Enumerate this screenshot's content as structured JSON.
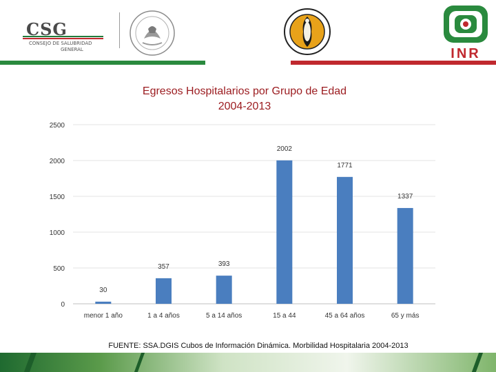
{
  "header": {
    "csg_logo_text": "CSG",
    "csg_subtitle_1": "CONSEJO DE SALUBRIDAD",
    "csg_subtitle_2": "GENERAL",
    "inr_logo_text": "INR",
    "accent_green": "#2a8a3e",
    "accent_red": "#c0282e"
  },
  "chart_data": {
    "type": "bar",
    "title": "Egresos  Hospitalarios  por  Grupo de Edad",
    "subtitle": "2004-2013",
    "categories": [
      "menor 1 año",
      "1 a 4 años",
      "5 a 14 años",
      "15 a 44",
      "45 a 64 años",
      "65 y más"
    ],
    "values": [
      30,
      357,
      393,
      2002,
      1771,
      1337
    ],
    "data_labels": [
      "30",
      "357",
      "393",
      "2002",
      "1771",
      "1337"
    ],
    "ylim": [
      0,
      2500
    ],
    "yticks": [
      0,
      500,
      1000,
      1500,
      2000,
      2500
    ],
    "grid": true,
    "legend": "none",
    "bar_color": "#4a7ebf"
  },
  "source": "FUENTE: SSA.DGIS Cubos de Información Dinámica. Morbilidad Hospitalaria 2004-2013"
}
